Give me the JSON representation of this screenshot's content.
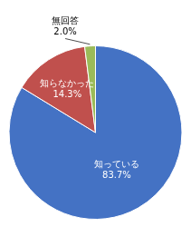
{
  "chart_data": {
    "type": "pie",
    "categories": [
      "知っている",
      "知らなかった",
      "無回答"
    ],
    "values": [
      83.7,
      14.3,
      2.0
    ],
    "value_labels": [
      "83.7%",
      "14.3%",
      "2.0%"
    ],
    "data_labels": true,
    "colors": [
      "#4472C4",
      "#C0504D",
      "#9BBB59"
    ]
  }
}
